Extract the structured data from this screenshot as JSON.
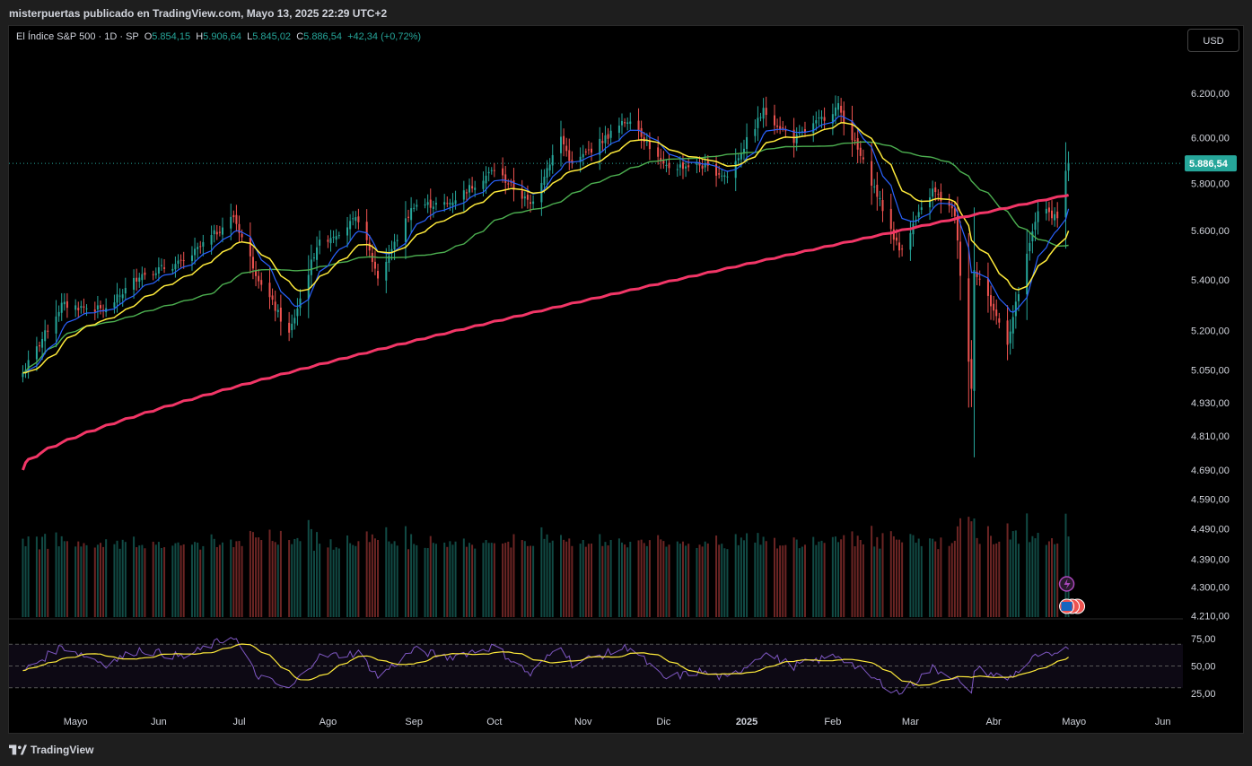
{
  "header": {
    "publisher": "misterpuertas publicado en TradingView.com, Mayo 13, 2025 22:29 UTC+2"
  },
  "legend": {
    "symbol": "El Índice S&P 500 · 1D · SP",
    "o_label": "O",
    "o": "5.854,15",
    "h_label": "H",
    "h": "5.906,64",
    "l_label": "L",
    "l": "5.845,02",
    "c_label": "C",
    "c": "5.886,54",
    "change": "+42,34 (+0,72%)"
  },
  "currency_button": "USD",
  "footer": {
    "brand": "TradingView"
  },
  "colors": {
    "up": "#26a69a",
    "down": "#ef5350",
    "sma200": "#f23667",
    "sma50": "#4caf50",
    "ema20": "#ffeb3b",
    "ema10": "#2962ff",
    "rsi": "#7e57c2",
    "rsi_ma": "#ffeb3b"
  },
  "chart_data": {
    "type": "candlestick",
    "x_labels": [
      "Mayo",
      "Jun",
      "Jul",
      "Ago",
      "Sep",
      "Oct",
      "Nov",
      "Dic",
      "2025",
      "Feb",
      "Mar",
      "Abr",
      "Mayo",
      "Jun"
    ],
    "price_axis": [
      "6.200,00",
      "6.000,00",
      "5.800,00",
      "5.600,00",
      "5.400,00",
      "5.200,00",
      "5.050,00",
      "4.930,00",
      "4.810,00",
      "4.690,00",
      "4.590,00",
      "4.490,00",
      "4.390,00",
      "4.300,00",
      "4.210,00"
    ],
    "price_scale": "log",
    "last_price": "5.886,54",
    "price_ylim": [
      4200,
      6250
    ],
    "price_anchors": [
      [
        "2024-05-01",
        5040
      ],
      [
        "2024-05-15",
        5300
      ],
      [
        "2024-05-31",
        5280
      ],
      [
        "2024-06-12",
        5420
      ],
      [
        "2024-06-28",
        5470
      ],
      [
        "2024-07-16",
        5660
      ],
      [
        "2024-07-24",
        5430
      ],
      [
        "2024-08-05",
        5186
      ],
      [
        "2024-08-15",
        5540
      ],
      [
        "2024-08-30",
        5650
      ],
      [
        "2024-09-06",
        5410
      ],
      [
        "2024-09-19",
        5710
      ],
      [
        "2024-10-01",
        5710
      ],
      [
        "2024-10-18",
        5860
      ],
      [
        "2024-10-31",
        5710
      ],
      [
        "2024-11-11",
        6000
      ],
      [
        "2024-11-15",
        5880
      ],
      [
        "2024-12-06",
        6090
      ],
      [
        "2024-12-18",
        5870
      ],
      [
        "2024-12-31",
        5880
      ],
      [
        "2025-01-10",
        5830
      ],
      [
        "2025-01-23",
        6120
      ],
      [
        "2025-02-03",
        5990
      ],
      [
        "2025-02-19",
        6140
      ],
      [
        "2025-03-04",
        5780
      ],
      [
        "2025-03-13",
        5520
      ],
      [
        "2025-03-25",
        5770
      ],
      [
        "2025-04-02",
        5670
      ],
      [
        "2025-04-08",
        4980
      ],
      [
        "2025-04-09",
        5450
      ],
      [
        "2025-04-21",
        5160
      ],
      [
        "2025-05-02",
        5690
      ],
      [
        "2025-05-09",
        5660
      ],
      [
        "2025-05-12",
        5845
      ],
      [
        "2025-05-13",
        5887
      ]
    ],
    "indicators": {
      "sma200": {
        "start": 4690,
        "end": 5750
      },
      "sma50_end": 5540,
      "ema20_end": 5600,
      "ema10_end": 5690
    },
    "volume": "bars",
    "rsi": {
      "axis": [
        "75,00",
        "50,00",
        "25,00"
      ],
      "ylim": [
        15,
        85
      ],
      "bands": [
        30,
        50,
        70
      ],
      "anchors": [
        [
          "2024-05-01",
          45
        ],
        [
          "2024-05-15",
          68
        ],
        [
          "2024-05-31",
          52
        ],
        [
          "2024-06-12",
          65
        ],
        [
          "2024-06-28",
          58
        ],
        [
          "2024-07-16",
          78
        ],
        [
          "2024-07-24",
          42
        ],
        [
          "2024-08-05",
          28
        ],
        [
          "2024-08-15",
          58
        ],
        [
          "2024-08-30",
          62
        ],
        [
          "2024-09-06",
          40
        ],
        [
          "2024-09-19",
          65
        ],
        [
          "2024-10-01",
          58
        ],
        [
          "2024-10-18",
          68
        ],
        [
          "2024-10-31",
          42
        ],
        [
          "2024-11-11",
          70
        ],
        [
          "2024-11-15",
          52
        ],
        [
          "2024-12-06",
          68
        ],
        [
          "2024-12-18",
          38
        ],
        [
          "2024-12-31",
          45
        ],
        [
          "2025-01-10",
          38
        ],
        [
          "2025-01-23",
          62
        ],
        [
          "2025-02-03",
          50
        ],
        [
          "2025-02-19",
          60
        ],
        [
          "2025-03-04",
          38
        ],
        [
          "2025-03-13",
          25
        ],
        [
          "2025-03-25",
          48
        ],
        [
          "2025-04-02",
          40
        ],
        [
          "2025-04-08",
          22
        ],
        [
          "2025-04-09",
          48
        ],
        [
          "2025-04-21",
          38
        ],
        [
          "2025-05-02",
          60
        ],
        [
          "2025-05-09",
          58
        ],
        [
          "2025-05-12",
          66
        ],
        [
          "2025-05-13",
          68
        ]
      ]
    }
  }
}
